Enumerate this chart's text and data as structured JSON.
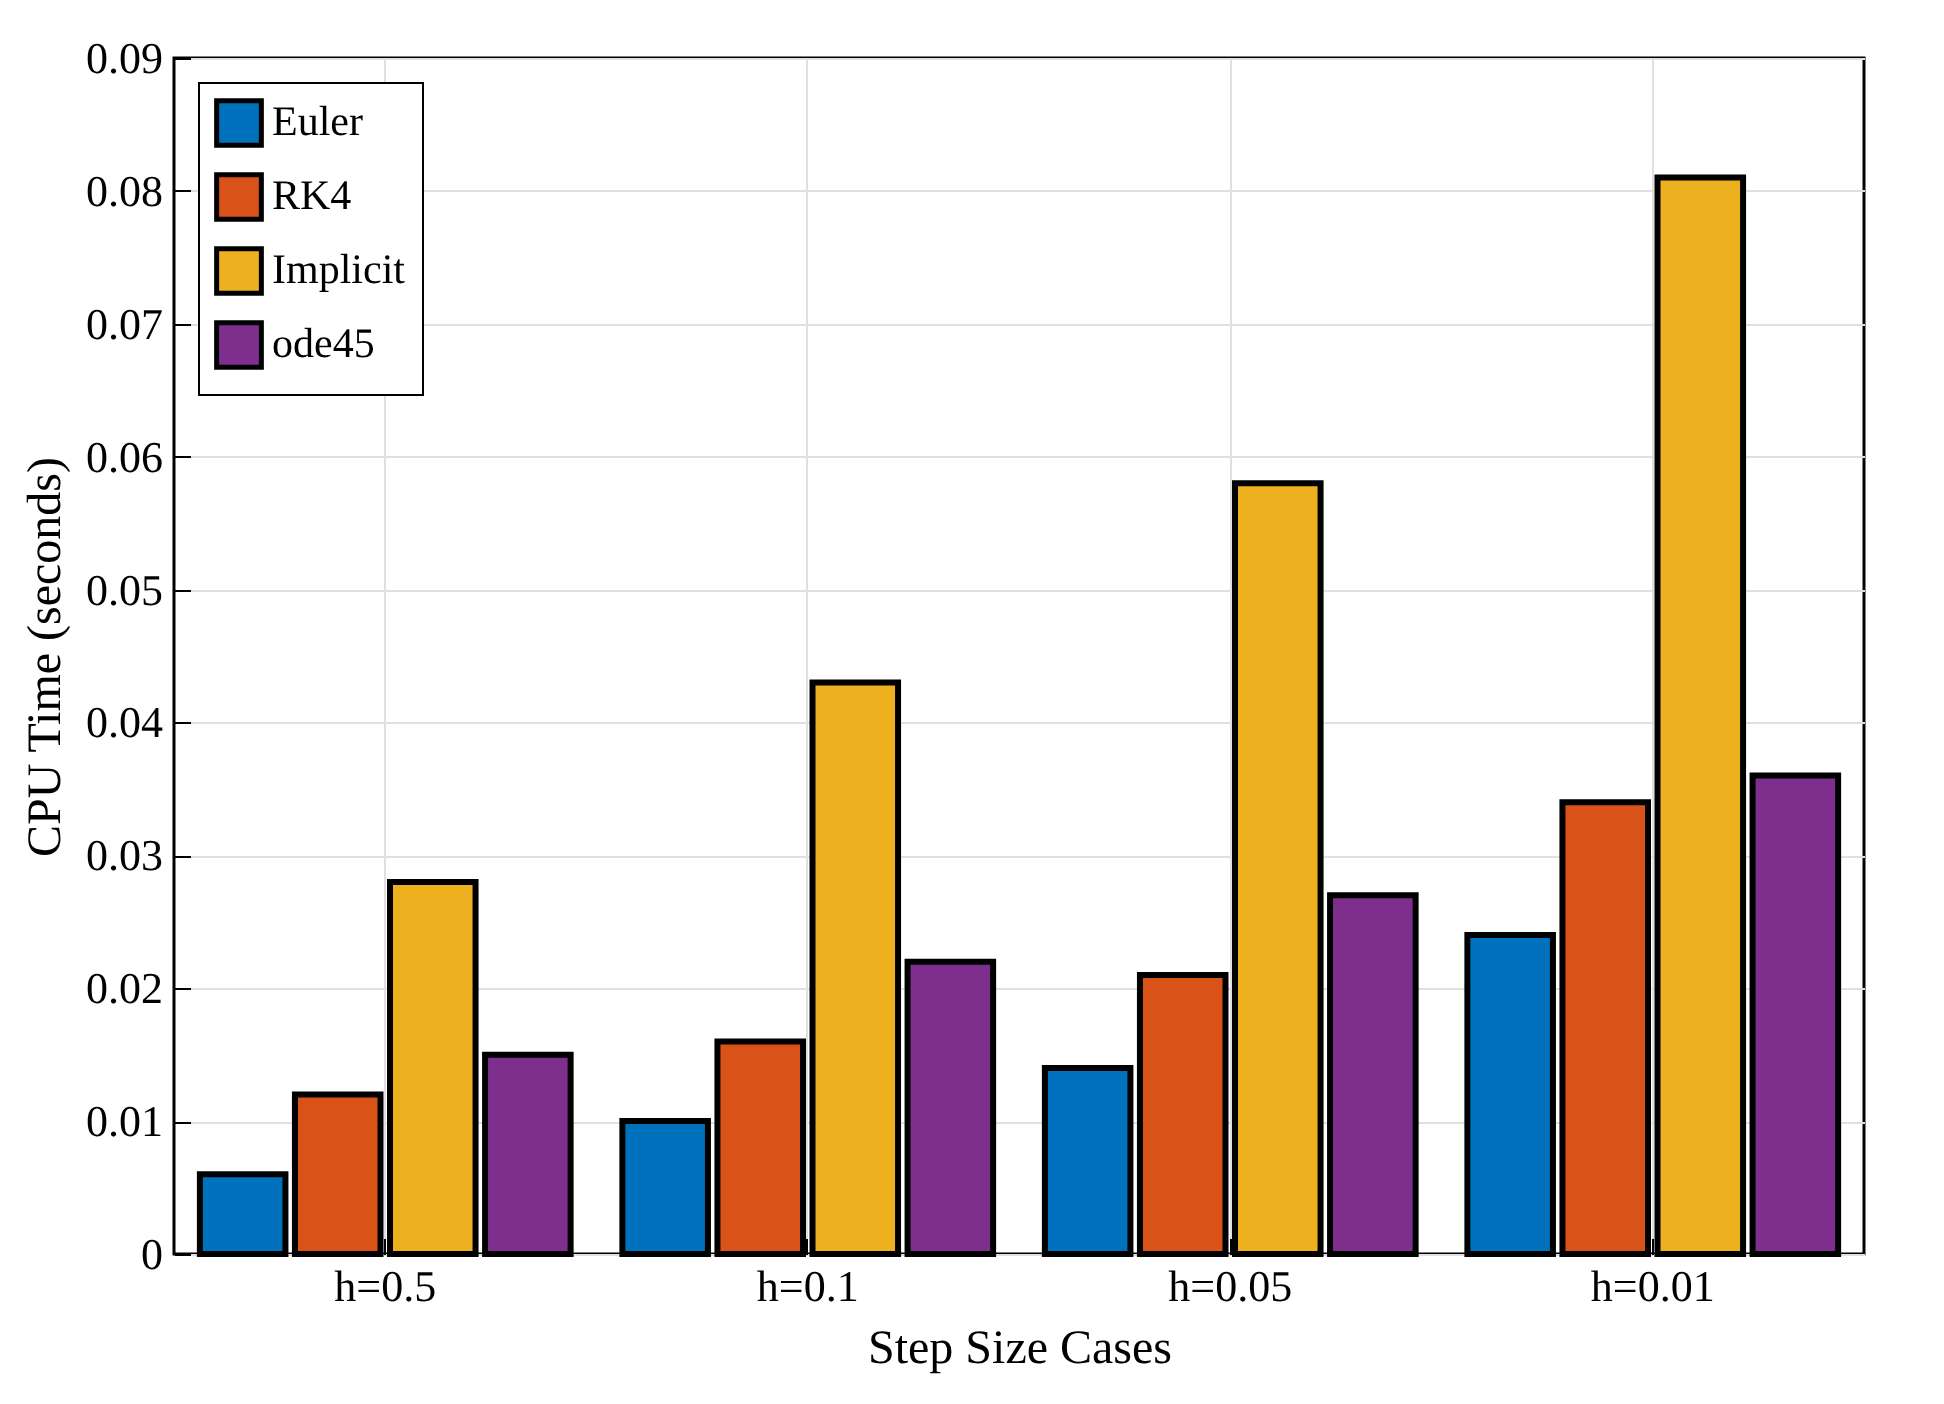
{
  "chart_data": {
    "type": "bar",
    "xlabel": "Step Size Cases",
    "ylabel": "CPU Time (seconds)",
    "categories": [
      "h=0.5",
      "h=0.1",
      "h=0.05",
      "h=0.01"
    ],
    "series": [
      {
        "name": "Euler",
        "color": "#0072bd",
        "values": [
          0.006,
          0.01,
          0.014,
          0.024
        ]
      },
      {
        "name": "RK4",
        "color": "#d95319",
        "values": [
          0.012,
          0.016,
          0.021,
          0.034
        ]
      },
      {
        "name": "Implicit",
        "color": "#edb120",
        "values": [
          0.028,
          0.043,
          0.058,
          0.081
        ]
      },
      {
        "name": "ode45",
        "color": "#7e2f8e",
        "values": [
          0.015,
          0.022,
          0.027,
          0.036
        ]
      }
    ],
    "ylim": [
      0,
      0.09
    ],
    "yticks": [
      0,
      0.01,
      0.02,
      0.03,
      0.04,
      0.05,
      0.06,
      0.07,
      0.08,
      0.09
    ],
    "grid": true,
    "legend": "top left"
  }
}
